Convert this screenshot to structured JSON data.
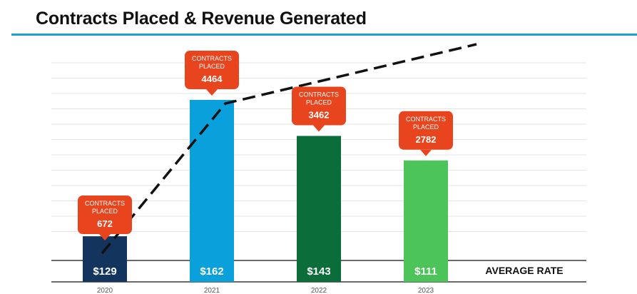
{
  "title": "Contracts Placed & Revenue Generated",
  "colors": {
    "title_rule": "#1aa0d8",
    "callout": "#e8441e",
    "bars": [
      "#13345c",
      "#0aa0dc",
      "#0b6e3a",
      "#4cc45a"
    ]
  },
  "chart_data": {
    "type": "bar",
    "categories": [
      "2020",
      "2021",
      "2022",
      "2023"
    ],
    "values": [
      672,
      4464,
      3462,
      2782
    ],
    "callout_label_line1": "CONTRACTS",
    "callout_label_line2": "PLACED",
    "average_rate": {
      "label": "AVERAGE RATE",
      "values": [
        "$129",
        "$162",
        "$143",
        "$111"
      ]
    },
    "trend_line": {
      "style": "dashed",
      "color": "#111111"
    },
    "grid": true,
    "ylim": [
      0,
      5500
    ]
  }
}
